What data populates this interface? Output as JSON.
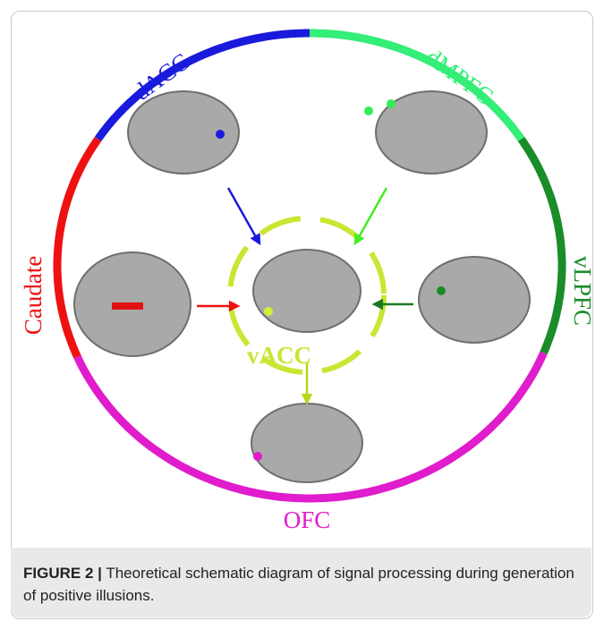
{
  "labels": {
    "dacc": "dACC",
    "dmpfc": "dMPFC",
    "caudate": "Caudate",
    "vlpfc": "vLPFC",
    "ofc": "OFC",
    "vacc": "vACC"
  },
  "caption": {
    "figure_label": "FIGURE 2 |",
    "text": "Theoretical schematic diagram of signal processing during generation of positive illusions."
  }
}
